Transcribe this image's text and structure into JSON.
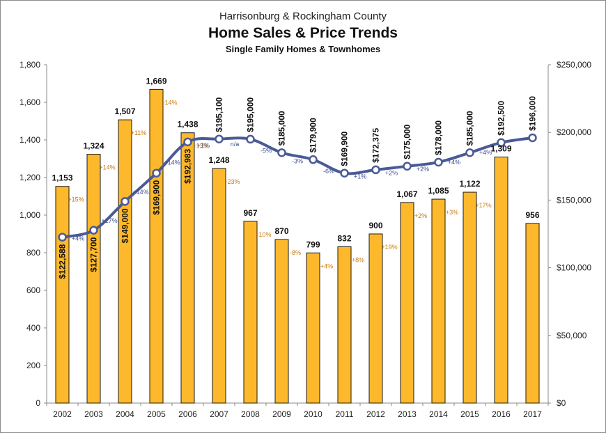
{
  "chart_data": {
    "type": "bar",
    "title": "Harrisonburg & Rockingham County",
    "subtitle": "Home Sales & Price Trends",
    "subtitle2": "Single Family Homes & Townhomes",
    "categories": [
      "2002",
      "2003",
      "2004",
      "2005",
      "2006",
      "2007",
      "2008",
      "2009",
      "2010",
      "2011",
      "2012",
      "2013",
      "2014",
      "2015",
      "2016",
      "2017"
    ],
    "series": [
      {
        "type": "bar",
        "axis": "left",
        "color": "#fdb92b",
        "values": [
          1153,
          1324,
          1507,
          1669,
          1438,
          1248,
          967,
          870,
          799,
          832,
          900,
          1067,
          1085,
          1122,
          1309,
          956
        ],
        "value_labels": [
          "1,153",
          "1,324",
          "1,507",
          "1,669",
          "1,438",
          "1,248",
          "967",
          "870",
          "799",
          "832",
          "900",
          "1,067",
          "1,085",
          "1,122",
          "1,309",
          "956"
        ],
        "change_labels": [
          "",
          "+15%",
          "+14%",
          "+11%",
          "-14%",
          "-13%",
          "-23%",
          "-10%",
          "-8%",
          "+4%",
          "+8%",
          "+19%",
          "+2%",
          "+3%",
          "+17%",
          ""
        ]
      },
      {
        "type": "line",
        "axis": "right",
        "color": "#4a5a96",
        "values": [
          122588,
          127700,
          149000,
          169900,
          192983,
          195100,
          195000,
          185000,
          179900,
          169900,
          172375,
          175000,
          178000,
          185000,
          192500,
          196000
        ],
        "value_labels": [
          "$122,588",
          "$127,700",
          "$149,000",
          "$169,900",
          "$192,983",
          "$195,100",
          "$195,000",
          "$185,000",
          "$179,900",
          "$169,900",
          "$172,375",
          "$175,000",
          "$178,000",
          "$185,000",
          "$192,500",
          "$196,000"
        ],
        "change_labels": [
          "",
          "+4%",
          "+17%",
          "+14%",
          "+14%",
          "+1%",
          "n/a",
          "-5%",
          "-3%",
          "-6%",
          "+1%",
          "+2%",
          "+2%",
          "+4%",
          "+4%",
          ""
        ]
      }
    ],
    "y_left": {
      "lim": [
        0,
        1800
      ],
      "ticks": [
        0,
        200,
        400,
        600,
        800,
        1000,
        1200,
        1400,
        1600,
        1800
      ],
      "tick_labels": [
        "0",
        "200",
        "400",
        "600",
        "800",
        "1,000",
        "1,200",
        "1,400",
        "1,600",
        "1,800"
      ]
    },
    "y_right": {
      "lim": [
        0,
        250000
      ],
      "ticks": [
        0,
        50000,
        100000,
        150000,
        200000,
        250000
      ],
      "tick_labels": [
        "$0",
        "$50,000",
        "$100,000",
        "$150,000",
        "$200,000",
        "$250,000"
      ]
    },
    "grid": false,
    "legend": "none"
  }
}
